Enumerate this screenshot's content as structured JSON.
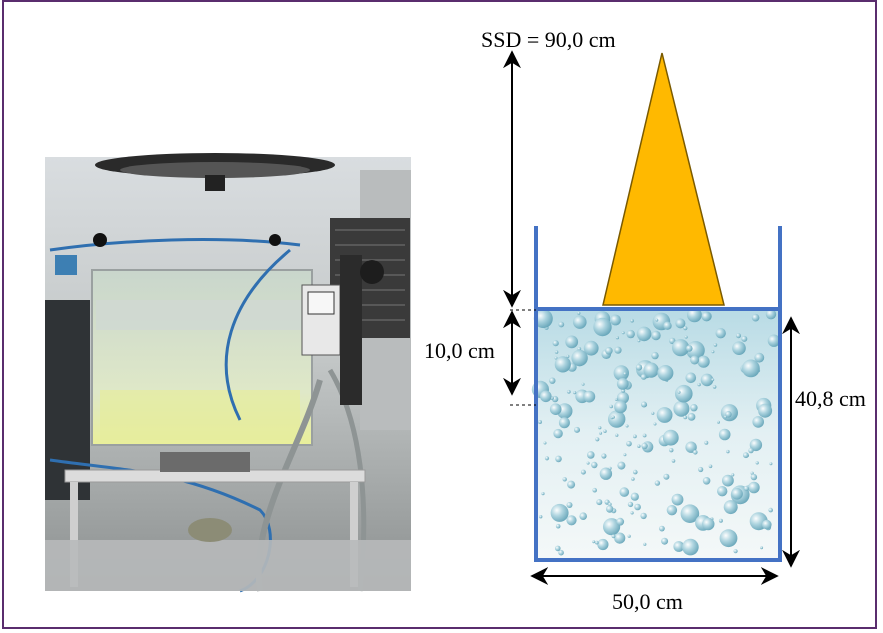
{
  "figure": {
    "photo": {
      "subject": "water-phantom-tank-photo"
    },
    "diagram": {
      "ssd_label": "SSD = 90,0 cm",
      "depth_label": "10,0 cm",
      "height_label": "40,8 cm",
      "width_label": "50,0 cm"
    },
    "colors": {
      "frame": "#5a2d6e",
      "beam": "#ffb900",
      "beam_outline": "#7a5a00",
      "tank": "#4472c4",
      "water": "#dfeef3",
      "bubble": "#7fb6c8"
    }
  }
}
